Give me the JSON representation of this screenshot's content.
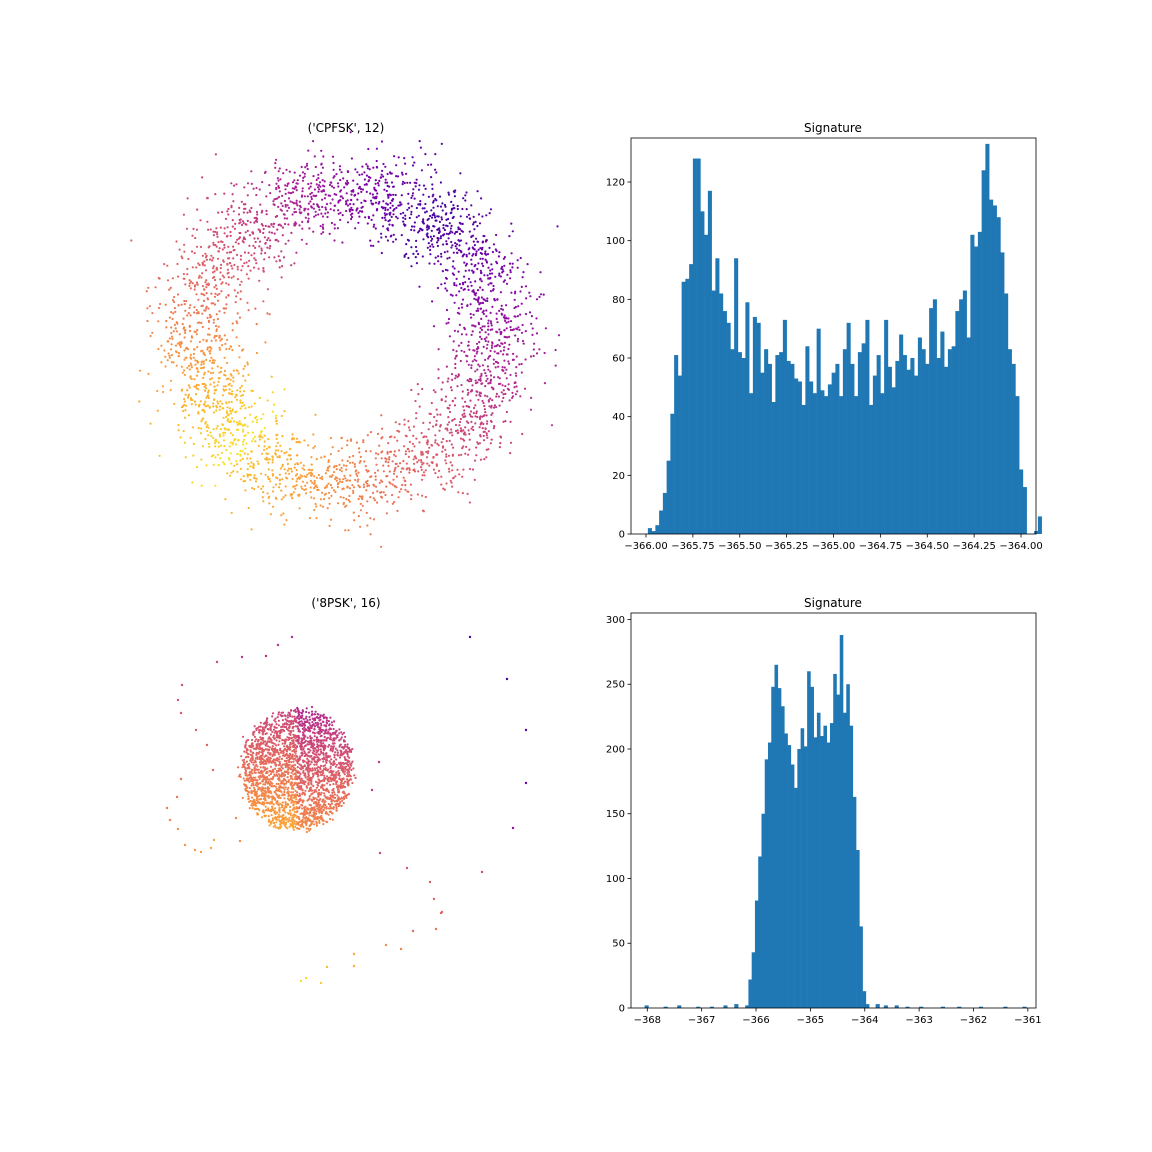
{
  "chart_data": [
    {
      "type": "scatter",
      "title": "('CPFSK', 12)",
      "shape": "ring",
      "colormap": "plasma",
      "axes_visible": false,
      "n_points": 3200,
      "color_mapping": "angle (purple at top-right, orange at bottom, yellow at lower-left)"
    },
    {
      "type": "bar",
      "title": "Signature",
      "color": "#1f77b4",
      "xlim": [
        -366.08,
        -363.92
      ],
      "ylim": [
        0,
        135
      ],
      "xticks": [
        -366.0,
        -365.75,
        -365.5,
        -365.25,
        -365.0,
        -364.75,
        -364.5,
        -364.25,
        -364.0
      ],
      "xtick_labels": [
        "−366.00",
        "−365.75",
        "−365.50",
        "−365.25",
        "−365.00",
        "−364.75",
        "−364.50",
        "−364.25",
        "−364.00"
      ],
      "yticks": [
        0,
        20,
        40,
        60,
        80,
        100,
        120
      ],
      "ytick_labels": [
        "0",
        "20",
        "40",
        "60",
        "80",
        "100",
        "120"
      ],
      "bin_start": -366.01,
      "bin_width": 0.02,
      "values": [
        0,
        2,
        1,
        3,
        8,
        14,
        25,
        41,
        61,
        54,
        86,
        87,
        92,
        128,
        128,
        110,
        102,
        117,
        83,
        94,
        82,
        76,
        72,
        63,
        94,
        62,
        60,
        79,
        48,
        74,
        72,
        55,
        63,
        58,
        45,
        61,
        62,
        73,
        59,
        58,
        53,
        52,
        44,
        64,
        52,
        48,
        70,
        49,
        47,
        51,
        55,
        58,
        47,
        63,
        72,
        58,
        47,
        62,
        65,
        73,
        44,
        54,
        61,
        48,
        73,
        57,
        50,
        59,
        68,
        61,
        56,
        60,
        54,
        67,
        63,
        58,
        77,
        80,
        60,
        69,
        57,
        63,
        64,
        76,
        80,
        83,
        67,
        102,
        98,
        103,
        124,
        133,
        114,
        112,
        108,
        96,
        82,
        63,
        58,
        47,
        22,
        16,
        0,
        0,
        1,
        6
      ]
    },
    {
      "type": "scatter",
      "title": "('8PSK', 16)",
      "shape": "disc with sparse outliers",
      "colormap": "plasma",
      "axes_visible": false,
      "n_points": 2400,
      "color_mapping": "angle (magenta at top, orange at bottom; outliers from purple to yellow)"
    },
    {
      "type": "bar",
      "title": "Signature",
      "color": "#1f77b4",
      "xlim": [
        -368.3,
        -360.85
      ],
      "ylim": [
        0,
        305
      ],
      "xticks": [
        -368,
        -367,
        -366,
        -365,
        -364,
        -363,
        -362,
        -361
      ],
      "xtick_labels": [
        "−368",
        "−367",
        "−366",
        "−365",
        "−364",
        "−363",
        "−362",
        "−361"
      ],
      "yticks": [
        0,
        50,
        100,
        150,
        200,
        250,
        300
      ],
      "ytick_labels": [
        "0",
        "50",
        "100",
        "150",
        "200",
        "250",
        "300"
      ],
      "bin_start": -368.25,
      "bin_width": 0.0705,
      "values": [
        0,
        0,
        1,
        2,
        0,
        0,
        0,
        1,
        0,
        0,
        0,
        0,
        1,
        0,
        0,
        0,
        1,
        0,
        0,
        0,
        1,
        2,
        0,
        0,
        0,
        0,
        0,
        0,
        0,
        0,
        1,
        2,
        0,
        0,
        0,
        0,
        0,
        0,
        0,
        0,
        2,
        2,
        0,
        0,
        0,
        0,
        0,
        0,
        0,
        0,
        1,
        1,
        1,
        1,
        0,
        0,
        0,
        0,
        0,
        0,
        1,
        0,
        0,
        0,
        0,
        0,
        0,
        1,
        1,
        1,
        2,
        3,
        1,
        0,
        0,
        1,
        1,
        3,
        1,
        0,
        1,
        0,
        1,
        0,
        1,
        2,
        1,
        0,
        0,
        1,
        0,
        1,
        1,
        2,
        0,
        1,
        0,
        1,
        0,
        1,
        2,
        1,
        1,
        0,
        1,
        0,
        0,
        0,
        1,
        0,
        0,
        0,
        1,
        0,
        1,
        0,
        0,
        0,
        1,
        2,
        3,
        1,
        4,
        3,
        1,
        1,
        1,
        2,
        3,
        3,
        1,
        3,
        1,
        0,
        0,
        1,
        2,
        3,
        1,
        2,
        1,
        0,
        1,
        2,
        0,
        0,
        1,
        0,
        1,
        0,
        0,
        0,
        0,
        1,
        2,
        1,
        0,
        0,
        0,
        1,
        0,
        0,
        0,
        0,
        0,
        0,
        0,
        0,
        0,
        0,
        0,
        0,
        0,
        0,
        1,
        0,
        0,
        0,
        0,
        0,
        0,
        0,
        0,
        0,
        0,
        0,
        0,
        0,
        0,
        0,
        0,
        0,
        0,
        0,
        0,
        0,
        0,
        0,
        0,
        0,
        0,
        0,
        0,
        0,
        0,
        0,
        0,
        0,
        0,
        0,
        0,
        0,
        0,
        1,
        0,
        0,
        0,
        0,
        0,
        0,
        0,
        0,
        0,
        0,
        0,
        0,
        0,
        0,
        0,
        0,
        0,
        0,
        0,
        0,
        0,
        0,
        0,
        0,
        0,
        0,
        0,
        0,
        0,
        0,
        0,
        0,
        0,
        0,
        0,
        0,
        0,
        0,
        0,
        0,
        0,
        0,
        0,
        0,
        0,
        0,
        0,
        0,
        0,
        0,
        0,
        0,
        0,
        0,
        0,
        0,
        0,
        0,
        0,
        0,
        0,
        0,
        0,
        0,
        1,
        0,
        0,
        0,
        0,
        0,
        0,
        0,
        0,
        0,
        0,
        0,
        0,
        1,
        0,
        1,
        0,
        0,
        0,
        0,
        0,
        0,
        0,
        0,
        0
      ],
      "main_values": [
        2,
        22,
        43,
        83,
        117,
        150,
        192,
        205,
        248,
        265,
        247,
        233,
        212,
        203,
        188,
        170,
        200,
        216,
        202,
        260,
        248,
        209,
        228,
        210,
        218,
        205,
        220,
        258,
        242,
        288,
        228,
        250,
        218,
        163,
        122,
        63,
        13,
        3
      ],
      "main_bin_start": -366.2,
      "main_bin_width": 0.06
    }
  ]
}
